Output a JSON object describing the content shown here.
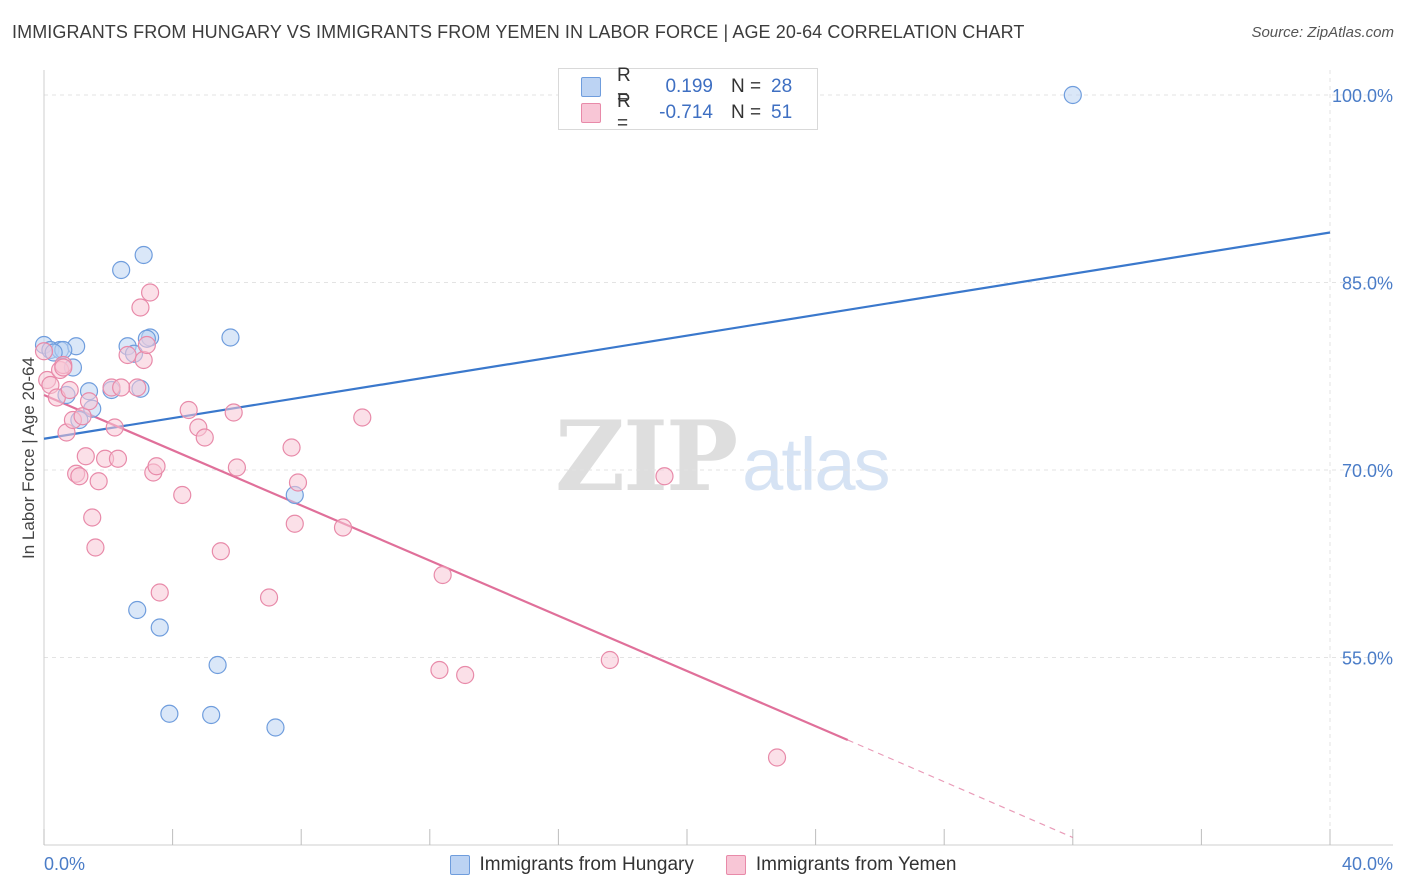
{
  "title": "IMMIGRANTS FROM HUNGARY VS IMMIGRANTS FROM YEMEN IN LABOR FORCE | AGE 20-64 CORRELATION CHART",
  "source": "Source: ZipAtlas.com",
  "watermark": {
    "zip": "ZIP",
    "atlas": "atlas"
  },
  "stats": [
    {
      "r_label": "R =",
      "r_value": "0.199",
      "n_label": "N =",
      "n_value": "28"
    },
    {
      "r_label": "R =",
      "r_value": "-0.714",
      "n_label": "N =",
      "n_value": "51"
    }
  ],
  "colors": {
    "hungary_fill": "#bcd3f3",
    "hungary_stroke": "#6f9ddd",
    "hungary_line": "#3a78cc",
    "yemen_fill": "#f8c6d6",
    "yemen_stroke": "#e88aa9",
    "yemen_line": "#e0709a",
    "grid": "#e3e3e3"
  },
  "chart_data": {
    "type": "scatter",
    "title": "IMMIGRANTS FROM HUNGARY VS IMMIGRANTS FROM YEMEN IN LABOR FORCE | AGE 20-64 CORRELATION CHART",
    "xlabel": "",
    "ylabel": "In Labor Force | Age 20-64",
    "xlim": [
      0,
      40
    ],
    "ylim": [
      40,
      102
    ],
    "x_ticks": [
      0,
      4,
      8,
      12,
      16,
      20,
      24,
      28,
      32,
      36,
      40
    ],
    "x_tick_labels": [
      {
        "x": 0,
        "label": "0.0%"
      },
      {
        "x": 40,
        "label": "40.0%"
      }
    ],
    "y_ticks": [
      {
        "y": 100,
        "label": "100.0%"
      },
      {
        "y": 85,
        "label": "85.0%"
      },
      {
        "y": 70,
        "label": "70.0%"
      },
      {
        "y": 55,
        "label": "55.0%"
      }
    ],
    "grid": true,
    "legend_position": "bottom-center",
    "series": [
      {
        "name": "Immigrants from Hungary",
        "points": [
          [
            0.0,
            80.0
          ],
          [
            0.2,
            79.6
          ],
          [
            0.5,
            79.6
          ],
          [
            0.7,
            76.0
          ],
          [
            1.0,
            79.9
          ],
          [
            1.4,
            76.3
          ],
          [
            0.9,
            78.2
          ],
          [
            1.1,
            74.0
          ],
          [
            2.1,
            76.4
          ],
          [
            2.6,
            79.9
          ],
          [
            3.1,
            87.2
          ],
          [
            2.4,
            86.0
          ],
          [
            3.3,
            80.6
          ],
          [
            3.2,
            80.5
          ],
          [
            5.8,
            80.6
          ],
          [
            7.8,
            68.0
          ],
          [
            2.8,
            79.3
          ],
          [
            3.0,
            76.5
          ],
          [
            1.5,
            74.9
          ],
          [
            2.9,
            58.8
          ],
          [
            3.6,
            57.4
          ],
          [
            5.4,
            54.4
          ],
          [
            3.9,
            50.5
          ],
          [
            5.2,
            50.4
          ],
          [
            7.2,
            49.4
          ],
          [
            32.0,
            100.0
          ],
          [
            0.6,
            79.6
          ],
          [
            0.3,
            79.4
          ]
        ],
        "trend": {
          "x0": 0,
          "y0": 72.5,
          "x1": 40,
          "y1": 89.0
        }
      },
      {
        "name": "Immigrants from Yemen",
        "points": [
          [
            0.0,
            79.5
          ],
          [
            0.1,
            77.2
          ],
          [
            0.2,
            76.8
          ],
          [
            0.4,
            75.8
          ],
          [
            0.5,
            78.0
          ],
          [
            0.6,
            78.4
          ],
          [
            0.8,
            76.4
          ],
          [
            0.7,
            73.0
          ],
          [
            0.9,
            74.0
          ],
          [
            1.2,
            74.3
          ],
          [
            1.3,
            71.1
          ],
          [
            1.4,
            75.5
          ],
          [
            1.5,
            66.2
          ],
          [
            1.6,
            63.8
          ],
          [
            1.7,
            69.1
          ],
          [
            1.9,
            70.9
          ],
          [
            2.1,
            76.6
          ],
          [
            2.3,
            70.9
          ],
          [
            2.6,
            79.2
          ],
          [
            2.9,
            76.6
          ],
          [
            2.2,
            73.4
          ],
          [
            3.0,
            83.0
          ],
          [
            3.1,
            78.8
          ],
          [
            3.3,
            84.2
          ],
          [
            3.4,
            69.8
          ],
          [
            3.5,
            70.3
          ],
          [
            3.6,
            60.2
          ],
          [
            3.2,
            80.0
          ],
          [
            4.3,
            68.0
          ],
          [
            4.5,
            74.8
          ],
          [
            4.8,
            73.4
          ],
          [
            5.0,
            72.6
          ],
          [
            5.5,
            63.5
          ],
          [
            5.9,
            74.6
          ],
          [
            6.0,
            70.2
          ],
          [
            7.0,
            59.8
          ],
          [
            7.7,
            71.8
          ],
          [
            7.8,
            65.7
          ],
          [
            7.9,
            69.0
          ],
          [
            9.3,
            65.4
          ],
          [
            9.9,
            74.2
          ],
          [
            12.4,
            61.6
          ],
          [
            12.3,
            54.0
          ],
          [
            13.1,
            53.6
          ],
          [
            17.6,
            54.8
          ],
          [
            19.3,
            69.5
          ],
          [
            22.8,
            47.0
          ],
          [
            1.0,
            69.7
          ],
          [
            1.1,
            69.5
          ],
          [
            2.4,
            76.6
          ],
          [
            0.6,
            78.2
          ]
        ],
        "trend": {
          "x0": 0,
          "y0": 76.0,
          "x1": 25.0,
          "y1": 48.4,
          "dash_to_x": 32.0,
          "dash_to_y": 40.6
        }
      }
    ]
  }
}
